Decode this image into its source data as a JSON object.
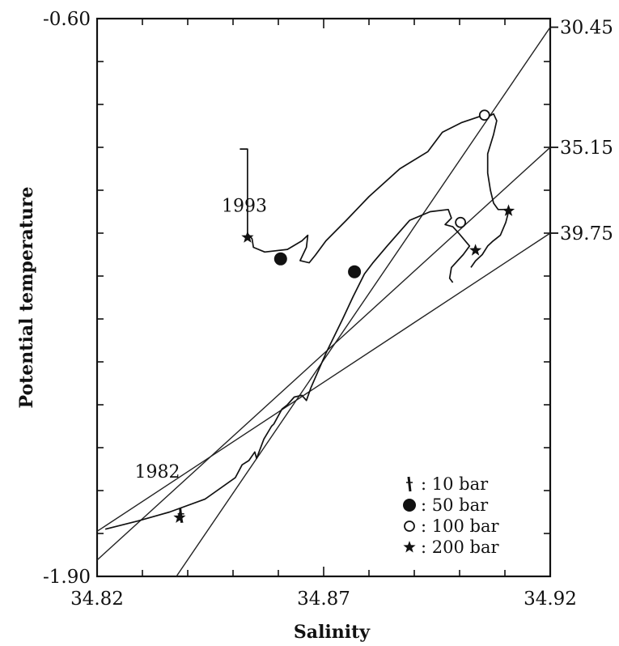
{
  "chart_data": {
    "type": "line",
    "xlabel": "Salinity",
    "ylabel": "Potential temperature",
    "xlim": [
      34.82,
      34.92
    ],
    "ylim": [
      -1.9,
      -0.6
    ],
    "x_ticks": [
      "34.82",
      "34.87",
      "34.92"
    ],
    "y_ticks": [
      "-0.60",
      "-1.90"
    ],
    "right_axis_labels": [
      {
        "text": "30.45",
        "y": -0.62
      },
      {
        "text": "35.15",
        "y": -0.9
      },
      {
        "text": "39.75",
        "y": -1.1
      }
    ],
    "series": [
      {
        "name": "1993",
        "points": [
          [
            34.8515,
            -0.904
          ],
          [
            34.8532,
            -0.904
          ],
          [
            34.8532,
            -1.101
          ],
          [
            34.8542,
            -1.113
          ],
          [
            34.8545,
            -1.133
          ],
          [
            34.857,
            -1.144
          ],
          [
            34.862,
            -1.138
          ],
          [
            34.8652,
            -1.118
          ],
          [
            34.8665,
            -1.105
          ],
          [
            34.8662,
            -1.133
          ],
          [
            34.8648,
            -1.164
          ],
          [
            34.8668,
            -1.169
          ],
          [
            34.8682,
            -1.151
          ],
          [
            34.8705,
            -1.118
          ],
          [
            34.875,
            -1.07
          ],
          [
            34.88,
            -1.015
          ],
          [
            34.8868,
            -0.95
          ],
          [
            34.893,
            -0.91
          ],
          [
            34.8962,
            -0.865
          ],
          [
            34.9005,
            -0.842
          ],
          [
            34.905,
            -0.826
          ],
          [
            34.9068,
            -0.826
          ],
          [
            34.9075,
            -0.822
          ],
          [
            34.9082,
            -0.838
          ],
          [
            34.9075,
            -0.87
          ],
          [
            34.9062,
            -0.915
          ],
          [
            34.9062,
            -0.96
          ],
          [
            34.9068,
            -1.0
          ],
          [
            34.9075,
            -1.03
          ],
          [
            34.9085,
            -1.045
          ],
          [
            34.9098,
            -1.045
          ],
          [
            34.9108,
            -1.05
          ],
          [
            34.9102,
            -1.075
          ],
          [
            34.909,
            -1.105
          ],
          [
            34.9072,
            -1.12
          ],
          [
            34.9062,
            -1.13
          ],
          [
            34.905,
            -1.15
          ],
          [
            34.9035,
            -1.165
          ],
          [
            34.9025,
            -1.18
          ]
        ]
      },
      {
        "name": "1982",
        "points": [
          [
            34.8218,
            -1.79
          ],
          [
            34.829,
            -1.771
          ],
          [
            34.836,
            -1.75
          ],
          [
            34.8438,
            -1.72
          ],
          [
            34.8505,
            -1.67
          ],
          [
            34.852,
            -1.64
          ],
          [
            34.8535,
            -1.63
          ],
          [
            34.8548,
            -1.61
          ],
          [
            34.8552,
            -1.625
          ],
          [
            34.8568,
            -1.58
          ],
          [
            34.8585,
            -1.55
          ],
          [
            34.859,
            -1.545
          ],
          [
            34.8608,
            -1.51
          ],
          [
            34.862,
            -1.5
          ],
          [
            34.8635,
            -1.482
          ],
          [
            34.8652,
            -1.478
          ],
          [
            34.8662,
            -1.49
          ],
          [
            34.8672,
            -1.46
          ],
          [
            34.8705,
            -1.38
          ],
          [
            34.8742,
            -1.3
          ],
          [
            34.8765,
            -1.248
          ],
          [
            34.879,
            -1.195
          ],
          [
            34.8808,
            -1.17
          ],
          [
            34.884,
            -1.13
          ],
          [
            34.889,
            -1.07
          ],
          [
            34.8935,
            -1.05
          ],
          [
            34.8975,
            -1.045
          ],
          [
            34.8982,
            -1.065
          ],
          [
            34.8968,
            -1.08
          ],
          [
            34.8985,
            -1.085
          ],
          [
            34.8998,
            -1.1
          ],
          [
            34.9022,
            -1.13
          ],
          [
            34.9008,
            -1.15
          ],
          [
            34.8982,
            -1.18
          ],
          [
            34.8978,
            -1.205
          ],
          [
            34.8985,
            -1.215
          ]
        ]
      }
    ],
    "reference_lines": [
      {
        "from": [
          34.8375,
          -1.9
        ],
        "to": [
          34.92,
          -0.62
        ]
      },
      {
        "from": [
          34.82,
          -1.862
        ],
        "to": [
          34.92,
          -0.9
        ]
      },
      {
        "from": [
          34.82,
          -1.795
        ],
        "to": [
          34.92,
          -1.1
        ]
      }
    ],
    "markers": [
      {
        "kind": "10 bar",
        "x": 34.8385,
        "y": -1.758
      },
      {
        "kind": "50 bar",
        "x": 34.8605,
        "y": -1.16
      },
      {
        "kind": "50 bar",
        "x": 34.8768,
        "y": -1.19
      },
      {
        "kind": "100 bar",
        "x": 34.9055,
        "y": -0.825
      },
      {
        "kind": "100 bar",
        "x": 34.9002,
        "y": -1.075
      },
      {
        "kind": "200 bar",
        "x": 34.8532,
        "y": -1.11
      },
      {
        "kind": "200 bar",
        "x": 34.8382,
        "y": -1.763
      },
      {
        "kind": "200 bar",
        "x": 34.9108,
        "y": -1.048
      },
      {
        "kind": "200 bar",
        "x": 34.9035,
        "y": -1.14
      }
    ],
    "annotations": [
      {
        "text": "1993",
        "x": 34.8525,
        "y": -1.05
      },
      {
        "text": "1982",
        "x": 34.8333,
        "y": -1.67
      }
    ],
    "legend": {
      "position": "bottom-right",
      "entries": [
        {
          "symbol": "tick",
          "label": ":  10 bar"
        },
        {
          "symbol": "filled-circle",
          "label": ":  50 bar"
        },
        {
          "symbol": "open-circle",
          "label": ": 100 bar"
        },
        {
          "symbol": "star",
          "label": ": 200 bar"
        }
      ]
    },
    "grid": false
  }
}
